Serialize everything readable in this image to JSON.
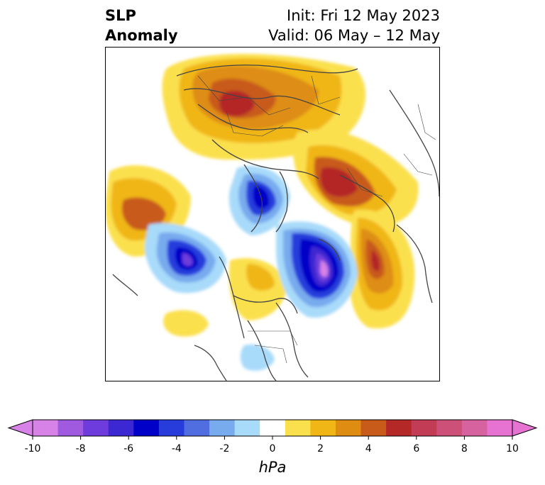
{
  "title": {
    "left_line1": "SLP",
    "left_line2": "Anomaly",
    "right_line1": "Init: Fri 12 May 2023",
    "right_line2": "Valid: 06 May – 12 May"
  },
  "map": {
    "projection": "north-polar-stereographic",
    "field": "sea level pressure anomaly",
    "coastline_color": "#444444"
  },
  "colorbar": {
    "unit": "hPa",
    "extend": "both",
    "tick_labels": [
      "-10",
      "-8",
      "-6",
      "-4",
      "-2",
      "0",
      "2",
      "4",
      "6",
      "8",
      "10"
    ],
    "levels": [
      -10,
      -9,
      -8,
      -7,
      -6,
      -5,
      -4,
      -3,
      -2,
      -1,
      1,
      2,
      3,
      4,
      5,
      6,
      7,
      8,
      9,
      10
    ],
    "colors": [
      "#d782e6",
      "#a05ae0",
      "#6e3cdc",
      "#3c28d2",
      "#0000c8",
      "#283cdc",
      "#506edf",
      "#78aaee",
      "#a8dafa",
      "#ffffff",
      "#fbe04e",
      "#f0b616",
      "#de8d12",
      "#c85a1a",
      "#b42828",
      "#c23c55",
      "#cc5078",
      "#d762a0",
      "#e672d2"
    ],
    "under_color": "#d782e6",
    "over_color": "#e672d2"
  }
}
